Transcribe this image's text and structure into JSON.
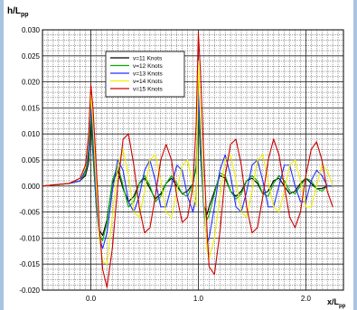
{
  "chart_data": {
    "type": "line",
    "ylabel_main": "h/L",
    "ylabel_sub": "pp",
    "xlabel_main": "x/L",
    "xlabel_sub": "pp",
    "xlim": [
      -0.45,
      2.35
    ],
    "ylim": [
      -0.02,
      0.03
    ],
    "x_ticks": [
      0.0,
      1.0,
      2.0
    ],
    "x_tick_labels": [
      "0.0",
      "1.0",
      "2.0"
    ],
    "y_ticks": [
      -0.02,
      -0.015,
      -0.01,
      -0.005,
      0.0,
      0.005,
      0.01,
      0.015,
      0.02,
      0.025,
      0.03
    ],
    "y_tick_labels": [
      "-0.020",
      "-0.015",
      "-0.010",
      "-0.005",
      "0.000",
      "0.005",
      "0.010",
      "0.015",
      "0.020",
      "0.025",
      "0.030"
    ],
    "grid": true,
    "legend_position": "top-center",
    "series": [
      {
        "name": "v=11 Knots",
        "color": "#000000",
        "x": [
          -0.45,
          -0.2,
          -0.1,
          -0.05,
          -0.02,
          0.0,
          0.02,
          0.05,
          0.08,
          0.11,
          0.15,
          0.2,
          0.25,
          0.3,
          0.35,
          0.4,
          0.45,
          0.5,
          0.55,
          0.6,
          0.65,
          0.7,
          0.75,
          0.8,
          0.85,
          0.9,
          0.95,
          0.98,
          1.0,
          1.02,
          1.05,
          1.08,
          1.1,
          1.15,
          1.2,
          1.25,
          1.3,
          1.35,
          1.4,
          1.45,
          1.5,
          1.55,
          1.6,
          1.65,
          1.7,
          1.75,
          1.8,
          1.85,
          1.9,
          1.95,
          2.0,
          2.05,
          2.1,
          2.15,
          2.2,
          2.25
        ],
        "y": [
          0.0,
          0.0005,
          0.001,
          0.002,
          0.0045,
          0.0125,
          0.006,
          -0.0035,
          -0.0085,
          -0.0095,
          -0.0065,
          0.0005,
          0.003,
          -0.0005,
          -0.003,
          -0.002,
          0.0005,
          0.0015,
          -0.0005,
          -0.0025,
          -0.0015,
          0.0005,
          0.0015,
          0.0,
          -0.0015,
          -0.001,
          0.0005,
          0.0035,
          0.0145,
          0.006,
          -0.0035,
          -0.0055,
          -0.004,
          -0.001,
          0.002,
          0.0015,
          -0.001,
          -0.002,
          -0.001,
          0.001,
          0.0015,
          0.0005,
          -0.0015,
          -0.001,
          0.001,
          0.0015,
          0.0,
          -0.0015,
          -0.001,
          0.0005,
          0.0015,
          0.0005,
          -0.0005,
          -0.0005,
          0.0,
          0.0
        ]
      },
      {
        "name": "v=12 Knots",
        "color": "#00b000",
        "x": [
          -0.45,
          -0.2,
          -0.1,
          -0.05,
          -0.02,
          0.0,
          0.02,
          0.05,
          0.08,
          0.11,
          0.15,
          0.2,
          0.25,
          0.3,
          0.35,
          0.4,
          0.45,
          0.5,
          0.55,
          0.6,
          0.65,
          0.7,
          0.75,
          0.8,
          0.85,
          0.9,
          0.95,
          0.98,
          1.0,
          1.02,
          1.05,
          1.08,
          1.1,
          1.15,
          1.2,
          1.25,
          1.3,
          1.35,
          1.4,
          1.45,
          1.5,
          1.55,
          1.6,
          1.65,
          1.7,
          1.75,
          1.8,
          1.85,
          1.9,
          1.95,
          2.0,
          2.05,
          2.1,
          2.15,
          2.2,
          2.25
        ],
        "y": [
          0.0,
          0.0005,
          0.001,
          0.0025,
          0.006,
          0.0145,
          0.007,
          -0.004,
          -0.0095,
          -0.0105,
          -0.007,
          0.001,
          0.004,
          0.0,
          -0.004,
          -0.003,
          0.0005,
          0.002,
          0.0,
          -0.003,
          -0.002,
          0.0005,
          0.002,
          0.0005,
          -0.0015,
          -0.002,
          0.0005,
          0.004,
          0.015,
          0.0065,
          -0.004,
          -0.0065,
          -0.0055,
          -0.0015,
          0.0025,
          0.002,
          -0.001,
          -0.0025,
          -0.0015,
          0.001,
          0.002,
          0.001,
          -0.0015,
          -0.002,
          0.0005,
          0.002,
          0.001,
          -0.001,
          -0.0015,
          0.0,
          0.0015,
          0.001,
          -0.0005,
          -0.001,
          0.0,
          0.0
        ]
      },
      {
        "name": "v=13 Knots",
        "color": "#2030ff",
        "x": [
          -0.45,
          -0.2,
          -0.1,
          -0.05,
          -0.02,
          0.0,
          0.02,
          0.05,
          0.08,
          0.11,
          0.15,
          0.2,
          0.25,
          0.3,
          0.35,
          0.4,
          0.45,
          0.5,
          0.55,
          0.6,
          0.65,
          0.7,
          0.75,
          0.8,
          0.85,
          0.9,
          0.95,
          0.98,
          1.0,
          1.02,
          1.05,
          1.08,
          1.1,
          1.15,
          1.2,
          1.25,
          1.3,
          1.35,
          1.4,
          1.45,
          1.5,
          1.55,
          1.6,
          1.65,
          1.7,
          1.75,
          1.8,
          1.85,
          1.9,
          1.95,
          2.0,
          2.05,
          2.1,
          2.15,
          2.2,
          2.25
        ],
        "y": [
          0.0,
          0.0005,
          0.001,
          0.003,
          0.007,
          0.016,
          0.009,
          -0.003,
          -0.01,
          -0.012,
          -0.009,
          -0.001,
          0.005,
          0.003,
          -0.003,
          -0.005,
          -0.002,
          0.003,
          0.005,
          0.001,
          -0.004,
          -0.004,
          0.0,
          0.004,
          0.003,
          -0.002,
          -0.005,
          -0.002,
          0.018,
          0.009,
          -0.004,
          -0.011,
          -0.01,
          -0.004,
          0.003,
          0.006,
          0.002,
          -0.004,
          -0.005,
          -0.001,
          0.004,
          0.005,
          0.001,
          -0.004,
          -0.004,
          0.0,
          0.004,
          0.004,
          0.0,
          -0.003,
          -0.003,
          0.001,
          0.003,
          0.002,
          0.0,
          0.0
        ]
      },
      {
        "name": "v=14 Knots",
        "color": "#f0f000",
        "x": [
          -0.45,
          -0.2,
          -0.1,
          -0.05,
          -0.02,
          0.0,
          0.02,
          0.05,
          0.08,
          0.11,
          0.15,
          0.2,
          0.25,
          0.3,
          0.35,
          0.4,
          0.45,
          0.5,
          0.55,
          0.6,
          0.65,
          0.7,
          0.75,
          0.8,
          0.85,
          0.9,
          0.95,
          0.98,
          1.0,
          1.02,
          1.05,
          1.08,
          1.1,
          1.15,
          1.2,
          1.25,
          1.3,
          1.35,
          1.4,
          1.45,
          1.5,
          1.55,
          1.6,
          1.65,
          1.7,
          1.75,
          1.8,
          1.85,
          1.9,
          1.95,
          2.0,
          2.05,
          2.1,
          2.15,
          2.2,
          2.25
        ],
        "y": [
          0.0,
          0.0005,
          0.0015,
          0.0035,
          0.009,
          0.0175,
          0.012,
          0.0,
          -0.01,
          -0.0145,
          -0.015,
          -0.006,
          0.004,
          0.007,
          0.002,
          -0.005,
          -0.006,
          -0.001,
          0.005,
          0.006,
          0.001,
          -0.005,
          -0.006,
          -0.001,
          0.004,
          0.005,
          0.0,
          -0.004,
          0.024,
          0.014,
          -0.002,
          -0.012,
          -0.014,
          -0.01,
          -0.002,
          0.005,
          0.006,
          0.001,
          -0.005,
          -0.006,
          -0.001,
          0.005,
          0.006,
          0.001,
          -0.004,
          -0.005,
          -0.001,
          0.004,
          0.005,
          0.001,
          -0.004,
          -0.004,
          0.0,
          0.004,
          0.003,
          0.0
        ]
      },
      {
        "name": "v=15 Knots",
        "color": "#d00000",
        "x": [
          -0.45,
          -0.2,
          -0.1,
          -0.05,
          -0.02,
          0.0,
          0.02,
          0.05,
          0.08,
          0.11,
          0.15,
          0.2,
          0.25,
          0.3,
          0.35,
          0.4,
          0.45,
          0.5,
          0.55,
          0.6,
          0.65,
          0.7,
          0.75,
          0.8,
          0.85,
          0.9,
          0.95,
          0.98,
          1.0,
          1.02,
          1.05,
          1.08,
          1.1,
          1.15,
          1.2,
          1.25,
          1.3,
          1.35,
          1.4,
          1.45,
          1.5,
          1.55,
          1.6,
          1.65,
          1.7,
          1.75,
          1.8,
          1.85,
          1.9,
          1.95,
          2.0,
          2.05,
          2.1,
          2.15,
          2.2,
          2.25
        ],
        "y": [
          0.0,
          0.0005,
          0.0015,
          0.004,
          0.01,
          0.0195,
          0.015,
          0.004,
          -0.008,
          -0.016,
          -0.0195,
          -0.012,
          0.0,
          0.009,
          0.01,
          0.004,
          -0.004,
          -0.009,
          -0.008,
          -0.002,
          0.005,
          0.008,
          0.005,
          -0.002,
          -0.007,
          -0.006,
          0.0,
          0.012,
          0.0295,
          0.022,
          0.006,
          -0.008,
          -0.0155,
          -0.017,
          -0.009,
          0.002,
          0.008,
          0.009,
          0.004,
          -0.004,
          -0.009,
          -0.008,
          -0.002,
          0.005,
          0.009,
          0.006,
          0.0,
          -0.006,
          -0.008,
          -0.005,
          0.002,
          0.007,
          0.0085,
          0.005,
          -0.001,
          -0.004
        ]
      }
    ]
  }
}
